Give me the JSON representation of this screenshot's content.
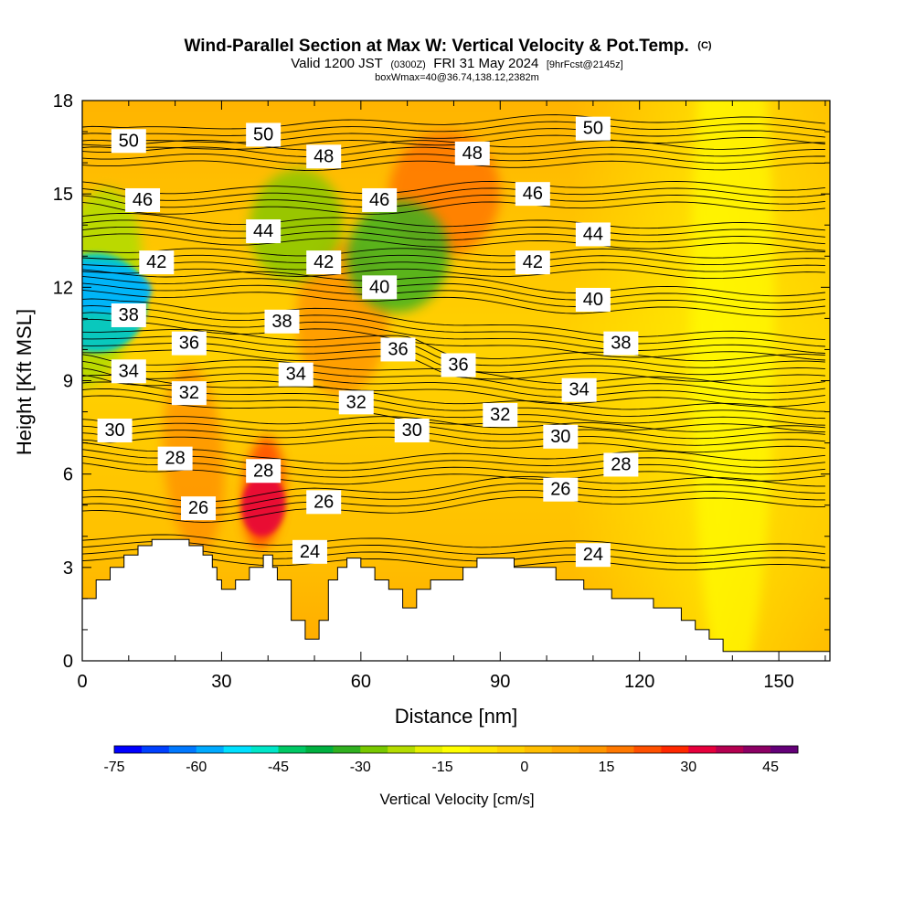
{
  "header": {
    "title": "Wind-Parallel Section at Max W: Vertical Velocity & Pot.Temp.",
    "title_mark": "(C)",
    "subtitle_a": "Valid 1200 JST",
    "subtitle_b": "(0300Z)",
    "subtitle_c": "FRI 31 May 2024",
    "subtitle_d": "[9hrFcst@2145z]",
    "subtitle_line3": "boxWmax=40@36.74,138.12,2382m"
  },
  "chart_data": {
    "type": "heatmap",
    "xlabel": "Distance [nm]",
    "ylabel": "Height [Kft MSL]",
    "xlim": [
      0,
      161
    ],
    "ylim": [
      0,
      18
    ],
    "x_ticks": [
      0,
      30,
      60,
      90,
      120,
      150
    ],
    "x_tick_labels": [
      "0",
      "30",
      "60",
      "90",
      "120",
      "150"
    ],
    "y_ticks": [
      0,
      3,
      6,
      9,
      12,
      15,
      18
    ],
    "y_tick_labels": [
      "0",
      "3",
      "6",
      "9",
      "12",
      "15",
      "18"
    ],
    "colorbar": {
      "title": "Vertical Velocity [cm/s]",
      "min": -75,
      "max": 50,
      "step": 5,
      "tick_values": [
        -75,
        -60,
        -45,
        -30,
        -15,
        0,
        15,
        30,
        45
      ],
      "tick_labels": [
        "-75",
        "-60",
        "-45",
        "-30",
        "-15",
        "0",
        "15",
        "30",
        "45"
      ],
      "colors": [
        "#0000ff",
        "#0040ff",
        "#0078ff",
        "#00aaff",
        "#00e0ff",
        "#00e6c8",
        "#00c864",
        "#00b040",
        "#30b020",
        "#78c800",
        "#b4dc00",
        "#e6f000",
        "#ffff00",
        "#ffe600",
        "#ffd200",
        "#ffbe00",
        "#ffaa00",
        "#ff9600",
        "#ff7800",
        "#ff5000",
        "#ff2800",
        "#e6003c",
        "#b40050",
        "#8c0064",
        "#640078"
      ]
    },
    "terrain_kft": [
      [
        0,
        2.0
      ],
      [
        3,
        2.0
      ],
      [
        3,
        2.6
      ],
      [
        6,
        2.6
      ],
      [
        6,
        3.0
      ],
      [
        9,
        3.0
      ],
      [
        9,
        3.4
      ],
      [
        12,
        3.4
      ],
      [
        12,
        3.7
      ],
      [
        15,
        3.7
      ],
      [
        15,
        3.9
      ],
      [
        23,
        3.9
      ],
      [
        23,
        3.7
      ],
      [
        26,
        3.7
      ],
      [
        26,
        3.4
      ],
      [
        28,
        3.4
      ],
      [
        28,
        3.0
      ],
      [
        29,
        3.0
      ],
      [
        29,
        2.6
      ],
      [
        30,
        2.6
      ],
      [
        30,
        2.3
      ],
      [
        33,
        2.3
      ],
      [
        33,
        2.6
      ],
      [
        36,
        2.6
      ],
      [
        36,
        3.0
      ],
      [
        39,
        3.0
      ],
      [
        39,
        3.4
      ],
      [
        41,
        3.4
      ],
      [
        41,
        3.0
      ],
      [
        42,
        3.0
      ],
      [
        42,
        2.6
      ],
      [
        45,
        2.6
      ],
      [
        45,
        1.3
      ],
      [
        48,
        1.3
      ],
      [
        48,
        0.7
      ],
      [
        51,
        0.7
      ],
      [
        51,
        1.3
      ],
      [
        53,
        1.3
      ],
      [
        53,
        2.6
      ],
      [
        55,
        2.6
      ],
      [
        55,
        3.0
      ],
      [
        57,
        3.0
      ],
      [
        57,
        3.3
      ],
      [
        60,
        3.3
      ],
      [
        60,
        3.0
      ],
      [
        63,
        3.0
      ],
      [
        63,
        2.6
      ],
      [
        66,
        2.6
      ],
      [
        66,
        2.3
      ],
      [
        69,
        2.3
      ],
      [
        69,
        1.7
      ],
      [
        72,
        1.7
      ],
      [
        72,
        2.3
      ],
      [
        75,
        2.3
      ],
      [
        75,
        2.6
      ],
      [
        82,
        2.6
      ],
      [
        82,
        3.0
      ],
      [
        85,
        3.0
      ],
      [
        85,
        3.3
      ],
      [
        93,
        3.3
      ],
      [
        93,
        3.0
      ],
      [
        102,
        3.0
      ],
      [
        102,
        2.6
      ],
      [
        108,
        2.6
      ],
      [
        108,
        2.3
      ],
      [
        114,
        2.3
      ],
      [
        114,
        2.0
      ],
      [
        123,
        2.0
      ],
      [
        123,
        1.7
      ],
      [
        129,
        1.7
      ],
      [
        129,
        1.3
      ],
      [
        132,
        1.3
      ],
      [
        132,
        1.0
      ],
      [
        135,
        1.0
      ],
      [
        135,
        0.7
      ],
      [
        138,
        0.7
      ],
      [
        138,
        0.3
      ],
      [
        161,
        0.3
      ]
    ],
    "theta_contours_celsius": [
      24,
      26,
      28,
      30,
      32,
      34,
      36,
      38,
      40,
      42,
      44,
      46,
      48,
      50
    ],
    "contour_labels": [
      {
        "value": "50",
        "x": 10,
        "y": 16.7
      },
      {
        "value": "50",
        "x": 39,
        "y": 16.9
      },
      {
        "value": "50",
        "x": 110,
        "y": 17.1
      },
      {
        "value": "48",
        "x": 52,
        "y": 16.2
      },
      {
        "value": "48",
        "x": 84,
        "y": 16.3
      },
      {
        "value": "46",
        "x": 13,
        "y": 14.8
      },
      {
        "value": "46",
        "x": 64,
        "y": 14.8
      },
      {
        "value": "46",
        "x": 97,
        "y": 15.0
      },
      {
        "value": "44",
        "x": 39,
        "y": 13.8
      },
      {
        "value": "44",
        "x": 110,
        "y": 13.7
      },
      {
        "value": "42",
        "x": 16,
        "y": 12.8
      },
      {
        "value": "42",
        "x": 52,
        "y": 12.8
      },
      {
        "value": "42",
        "x": 97,
        "y": 12.8
      },
      {
        "value": "40",
        "x": 64,
        "y": 12.0
      },
      {
        "value": "40",
        "x": 110,
        "y": 11.6
      },
      {
        "value": "38",
        "x": 10,
        "y": 11.1
      },
      {
        "value": "38",
        "x": 43,
        "y": 10.9
      },
      {
        "value": "38",
        "x": 116,
        "y": 10.2
      },
      {
        "value": "36",
        "x": 23,
        "y": 10.2
      },
      {
        "value": "36",
        "x": 68,
        "y": 10.0
      },
      {
        "value": "36",
        "x": 81,
        "y": 9.5
      },
      {
        "value": "34",
        "x": 10,
        "y": 9.3
      },
      {
        "value": "34",
        "x": 46,
        "y": 9.2
      },
      {
        "value": "34",
        "x": 107,
        "y": 8.7
      },
      {
        "value": "32",
        "x": 23,
        "y": 8.6
      },
      {
        "value": "32",
        "x": 59,
        "y": 8.3
      },
      {
        "value": "32",
        "x": 90,
        "y": 7.9
      },
      {
        "value": "30",
        "x": 7,
        "y": 7.4
      },
      {
        "value": "30",
        "x": 71,
        "y": 7.4
      },
      {
        "value": "30",
        "x": 103,
        "y": 7.2
      },
      {
        "value": "28",
        "x": 20,
        "y": 6.5
      },
      {
        "value": "28",
        "x": 39,
        "y": 6.1
      },
      {
        "value": "28",
        "x": 116,
        "y": 6.3
      },
      {
        "value": "26",
        "x": 25,
        "y": 4.9
      },
      {
        "value": "26",
        "x": 52,
        "y": 5.1
      },
      {
        "value": "26",
        "x": 103,
        "y": 5.5
      },
      {
        "value": "24",
        "x": 49,
        "y": 3.5
      },
      {
        "value": "24",
        "x": 110,
        "y": 3.4
      }
    ]
  }
}
